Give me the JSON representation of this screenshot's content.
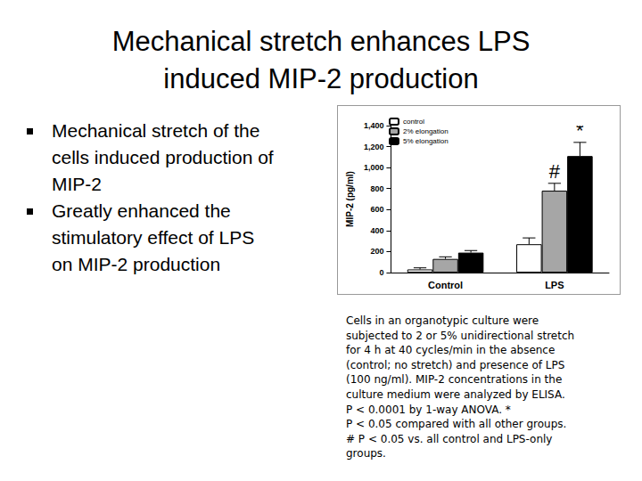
{
  "slide": {
    "title": [
      "Mechanical stretch enhances LPS",
      "induced MIP-2 production"
    ],
    "bullets": [
      "Mechanical stretch of the cells induced production of MIP-2",
      "Greatly enhanced the stimulatory effect of LPS on MIP-2 production"
    ],
    "caption": [
      "Cells in an organotypic culture were",
      "subjected to 2 or 5% unidirectional stretch",
      "for 4 h at 40 cycles/min in the absence",
      "(control; no stretch) and presence of LPS",
      "(100 ng/ml). MIP-2 concentrations in the",
      "culture medium were analyzed by ELISA.",
      "P < 0.0001 by 1-way ANOVA. *",
      "P < 0.05 compared with all other groups.",
      "# P < 0.05 vs. all control and LPS-only",
      "groups."
    ]
  },
  "chart_data": {
    "type": "bar",
    "y_label": "MIP-2 (pg/ml)",
    "categories": [
      "Control",
      "LPS"
    ],
    "series": [
      {
        "name": "control",
        "color": "#ffffff",
        "values": [
          30,
          270
        ],
        "errors": [
          15,
          60
        ]
      },
      {
        "name": "2% elongation",
        "color": "#a6a6a6",
        "values": [
          130,
          780
        ],
        "errors": [
          20,
          70
        ]
      },
      {
        "name": "5% elongation",
        "color": "#000000",
        "values": [
          190,
          1110
        ],
        "errors": [
          20,
          130
        ]
      }
    ],
    "annotations": [
      {
        "text": "#",
        "category": "LPS",
        "series": "2% elongation"
      },
      {
        "text": "*",
        "category": "LPS",
        "series": "5% elongation"
      }
    ],
    "ylim": [
      0,
      1400
    ],
    "yticks": [
      0,
      200,
      400,
      600,
      800,
      1000,
      1200,
      1400
    ],
    "grid": false,
    "legend": "top-left"
  }
}
